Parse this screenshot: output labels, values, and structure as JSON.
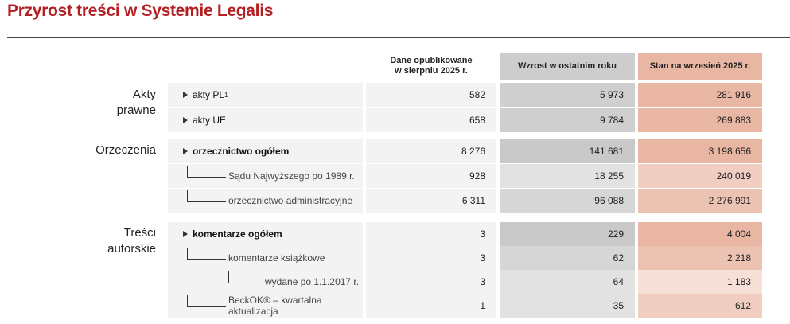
{
  "title": "Przyrost treści w Systemie Legalis",
  "columns": {
    "published": "Dane opublikowane\nw  sierpniu 2025 r.",
    "growth": "Wzrost w ostatnim roku",
    "state": "Stan na wrzesień 2025 r."
  },
  "sections": {
    "acts": "Akty\nprawne",
    "rulings": "Orzeczenia",
    "authored": "Treści\nautorskie"
  },
  "rows": [
    {
      "label": "akty PL",
      "sup": "1",
      "published": "582",
      "growth": "5 973",
      "state": "281 916"
    },
    {
      "label": "akty UE",
      "published": "658",
      "growth": "9 784",
      "state": "269 883"
    },
    {
      "label": "orzecznictwo ogółem",
      "published": "8 276",
      "growth": "141 681",
      "state": "3 198 656"
    },
    {
      "label": "Sądu Najwyższego po 1989 r.",
      "published": "928",
      "growth": "18 255",
      "state": "240 019"
    },
    {
      "label": "orzecznictwo administracyjne",
      "published": "6 311",
      "growth": "96 088",
      "state": "2 276 991"
    },
    {
      "label": "komentarze ogółem",
      "published": "3",
      "growth": "229",
      "state": "4 004"
    },
    {
      "label": "komentarze książkowe",
      "published": "3",
      "growth": "62",
      "state": "2 218"
    },
    {
      "label": "wydane po 1.1.2017 r.",
      "published": "3",
      "growth": "64",
      "state": "1 183"
    },
    {
      "label": "BeckOK® – kwartalna aktualizacja",
      "published": "1",
      "growth": "35",
      "state": "612"
    }
  ],
  "colors": {
    "title": "#b41f24",
    "growth_dark": "#c9c9c9",
    "growth_light": "#e2e2e2",
    "state_1": "#e8b6a2",
    "state_2": "#f0cfc2",
    "state_3": "#f6e0d7"
  }
}
